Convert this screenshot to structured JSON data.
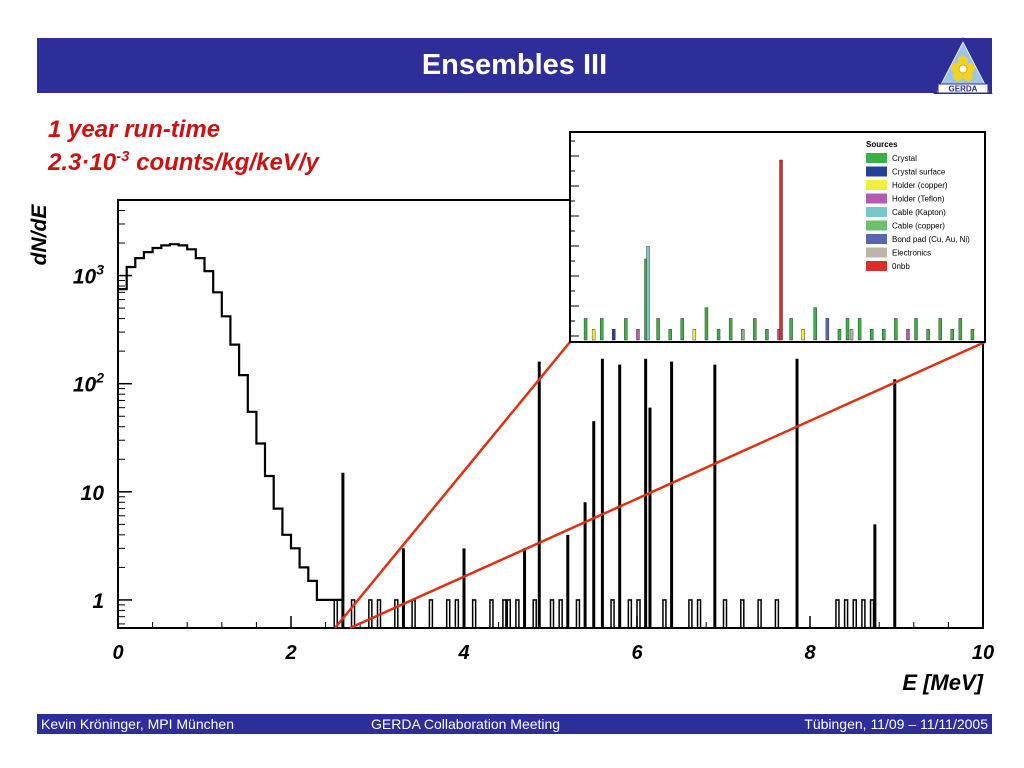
{
  "title": "Ensembles III",
  "logo_text": "GERDA",
  "subtitle": {
    "line1": "1 year run-time",
    "line2_prefix": "2.3",
    "line2_dot": "·",
    "line2_base": "10",
    "line2_exp": "-3",
    "line2_suffix": " counts/kg/keV/y"
  },
  "footer": {
    "left": "Kevin Kröninger, MPI München",
    "center": "GERDA Collaboration Meeting",
    "right": "Tübingen, 11/09 – 11/11/2005"
  },
  "colors": {
    "bar": "#2e2e9a",
    "highlight": "#cc1111",
    "zoom_lines": "#e03010",
    "histogram": "#000000"
  },
  "chart_data": [
    {
      "type": "histogram",
      "scale_y": "log",
      "xlabel": "E [MeV]",
      "ylabel": "dN/dE",
      "xlim": [
        0,
        10
      ],
      "ylim": [
        0.55,
        5000
      ],
      "x_ticks": [
        "0",
        "2",
        "4",
        "6",
        "8",
        "10"
      ],
      "y_ticks": [
        {
          "value": 1,
          "label": "1"
        },
        {
          "value": 10,
          "label": "10"
        },
        {
          "value": 100,
          "label": "10",
          "exp": "2"
        },
        {
          "value": 1000,
          "label": "10",
          "exp": "3"
        }
      ],
      "continuum": {
        "x": [
          0,
          0.1,
          0.2,
          0.3,
          0.4,
          0.5,
          0.6,
          0.7,
          0.8,
          0.9,
          1.0,
          1.1,
          1.2,
          1.3,
          1.4,
          1.5,
          1.6,
          1.7,
          1.8,
          1.9,
          2.0,
          2.1,
          2.2,
          2.3,
          2.4,
          2.5
        ],
        "y": [
          750,
          1200,
          1450,
          1650,
          1800,
          1900,
          1950,
          1900,
          1750,
          1450,
          1100,
          700,
          420,
          230,
          120,
          55,
          28,
          14,
          7,
          4,
          3,
          2,
          1.5,
          1,
          1,
          1
        ]
      },
      "lines": [
        {
          "x": 2.6,
          "y": 15
        },
        {
          "x": 3.3,
          "y": 3
        },
        {
          "x": 4.0,
          "y": 3
        },
        {
          "x": 4.7,
          "y": 3
        },
        {
          "x": 4.87,
          "y": 160
        },
        {
          "x": 5.2,
          "y": 4
        },
        {
          "x": 5.4,
          "y": 8
        },
        {
          "x": 5.5,
          "y": 45
        },
        {
          "x": 5.6,
          "y": 170
        },
        {
          "x": 5.8,
          "y": 150
        },
        {
          "x": 6.1,
          "y": 170
        },
        {
          "x": 6.15,
          "y": 60
        },
        {
          "x": 6.4,
          "y": 160
        },
        {
          "x": 6.9,
          "y": 150
        },
        {
          "x": 7.85,
          "y": 170
        },
        {
          "x": 8.75,
          "y": 5
        },
        {
          "x": 8.98,
          "y": 110
        }
      ],
      "singles": [
        2.5,
        2.7,
        2.9,
        3.0,
        3.2,
        3.4,
        3.6,
        3.8,
        3.9,
        4.1,
        4.3,
        4.45,
        4.5,
        4.6,
        4.8,
        5.0,
        5.1,
        5.3,
        5.7,
        5.9,
        6.0,
        6.3,
        6.6,
        6.7,
        7.0,
        7.2,
        7.4,
        7.6,
        8.3,
        8.4,
        8.5,
        8.6,
        8.7
      ]
    },
    {
      "type": "bar",
      "title": "Sources",
      "series": [
        {
          "name": "Crystal",
          "color": "#3cb043"
        },
        {
          "name": "Crystal surface",
          "color": "#24419a"
        },
        {
          "name": "Holder (copper)",
          "color": "#f0f03c"
        },
        {
          "name": "Holder (Teflon)",
          "color": "#b45ab4"
        },
        {
          "name": "Cable (Kapton)",
          "color": "#78c8c8"
        },
        {
          "name": "Cable (copper)",
          "color": "#6cc26c"
        },
        {
          "name": "Bond pad (Cu, Au, Ni)",
          "color": "#5a64b4"
        },
        {
          "name": "Electronics",
          "color": "#beb4aa"
        },
        {
          "name": "0nbb",
          "color": "#d83028"
        }
      ],
      "bars": [
        {
          "x": 0.02,
          "h": 0.12,
          "c": 0
        },
        {
          "x": 0.04,
          "h": 0.06,
          "c": 2
        },
        {
          "x": 0.06,
          "h": 0.12,
          "c": 0
        },
        {
          "x": 0.09,
          "h": 0.06,
          "c": 1
        },
        {
          "x": 0.12,
          "h": 0.12,
          "c": 0
        },
        {
          "x": 0.15,
          "h": 0.06,
          "c": 3
        },
        {
          "x": 0.17,
          "h": 0.45,
          "c": 0
        },
        {
          "x": 0.175,
          "h": 0.52,
          "c": 4
        },
        {
          "x": 0.2,
          "h": 0.12,
          "c": 0
        },
        {
          "x": 0.23,
          "h": 0.06,
          "c": 0
        },
        {
          "x": 0.26,
          "h": 0.12,
          "c": 0
        },
        {
          "x": 0.29,
          "h": 0.06,
          "c": 2
        },
        {
          "x": 0.32,
          "h": 0.18,
          "c": 0
        },
        {
          "x": 0.35,
          "h": 0.06,
          "c": 0
        },
        {
          "x": 0.38,
          "h": 0.12,
          "c": 0
        },
        {
          "x": 0.41,
          "h": 0.06,
          "c": 5
        },
        {
          "x": 0.44,
          "h": 0.12,
          "c": 0
        },
        {
          "x": 0.47,
          "h": 0.06,
          "c": 0
        },
        {
          "x": 0.5,
          "h": 0.06,
          "c": 3
        },
        {
          "x": 0.505,
          "h": 1.0,
          "c": 8
        },
        {
          "x": 0.53,
          "h": 0.12,
          "c": 0
        },
        {
          "x": 0.56,
          "h": 0.06,
          "c": 2
        },
        {
          "x": 0.59,
          "h": 0.18,
          "c": 0
        },
        {
          "x": 0.62,
          "h": 0.12,
          "c": 6
        },
        {
          "x": 0.65,
          "h": 0.06,
          "c": 0
        },
        {
          "x": 0.67,
          "h": 0.12,
          "c": 0
        },
        {
          "x": 0.68,
          "h": 0.06,
          "c": 7
        },
        {
          "x": 0.7,
          "h": 0.12,
          "c": 0
        },
        {
          "x": 0.73,
          "h": 0.06,
          "c": 0
        },
        {
          "x": 0.76,
          "h": 0.06,
          "c": 0
        },
        {
          "x": 0.79,
          "h": 0.12,
          "c": 0
        },
        {
          "x": 0.82,
          "h": 0.06,
          "c": 3
        },
        {
          "x": 0.84,
          "h": 0.12,
          "c": 0
        },
        {
          "x": 0.87,
          "h": 0.06,
          "c": 0
        },
        {
          "x": 0.9,
          "h": 0.12,
          "c": 0
        },
        {
          "x": 0.93,
          "h": 0.06,
          "c": 0
        },
        {
          "x": 0.95,
          "h": 0.12,
          "c": 0
        },
        {
          "x": 0.98,
          "h": 0.06,
          "c": 0
        }
      ]
    }
  ]
}
